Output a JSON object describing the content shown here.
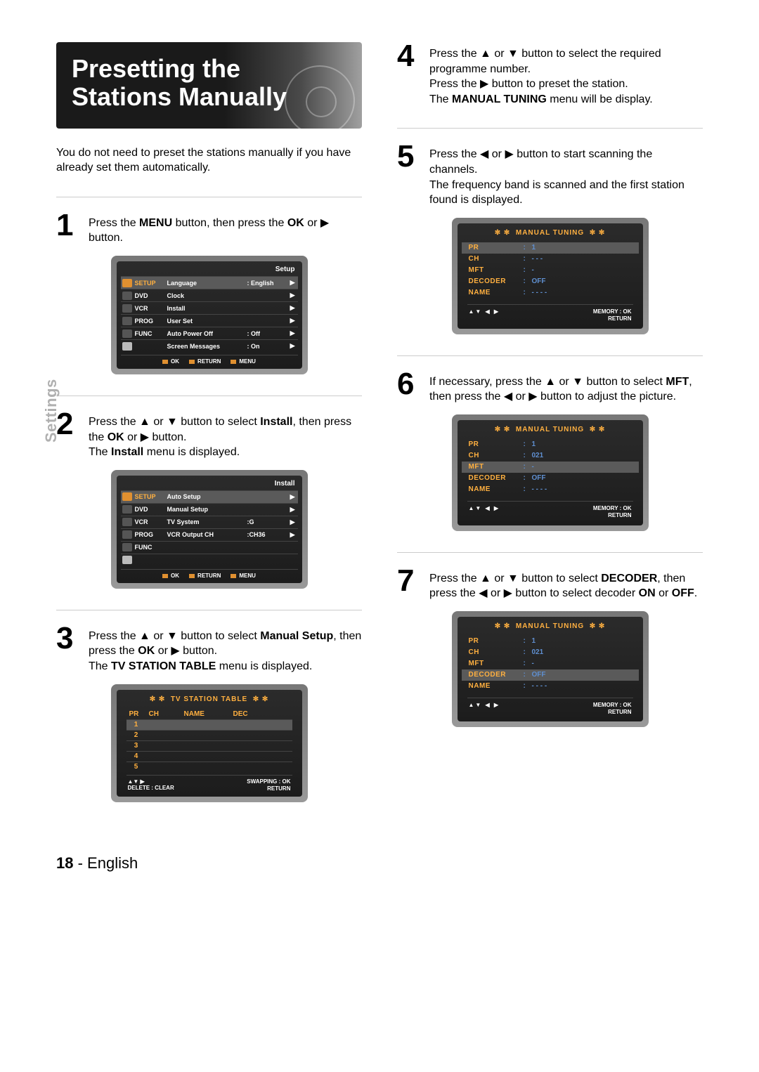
{
  "colors": {
    "accent_orange": "#ffb040",
    "accent_blue": "#5f8fd0",
    "gray_text": "#b0b0b0",
    "divider": "#cccccc",
    "osd_bg": "#1c1c1c"
  },
  "side_tab": "Settings",
  "title": "Presetting the Stations Manually",
  "intro": "You do not need to preset the stations manually if you have already set them automatically.",
  "steps": {
    "1": {
      "num": "1",
      "text_before": "Press the ",
      "b1": "MENU",
      "text_mid": " button, then press the ",
      "b2": "OK",
      "text_after": " or ▶ button."
    },
    "2": {
      "num": "2",
      "line1_a": "Press the ▲ or ▼ button to select ",
      "line1_b": "Install",
      "line1_c": ", then press the ",
      "line1_d": "OK",
      "line1_e": " or ▶ button.",
      "line2_a": "The ",
      "line2_b": "Install",
      "line2_c": " menu is displayed."
    },
    "3": {
      "num": "3",
      "line1_a": "Press the ▲ or ▼ button to select ",
      "line1_b": "Manual Setup",
      "line1_c": ", then press the ",
      "line1_d": "OK",
      "line1_e": " or ▶ button.",
      "line2_a": "The ",
      "line2_b": "TV STATION TABLE",
      "line2_c": " menu is displayed."
    },
    "4": {
      "num": "4",
      "text": "Press the ▲ or ▼ button to select the required programme number.\nPress the ▶ button to preset the station.\nThe ",
      "b": "MANUAL TUNING",
      "after": " menu will be display."
    },
    "5": {
      "num": "5",
      "text": "Press the ◀ or ▶ button to start scanning the channels.\nThe frequency band is scanned and the first station found is displayed."
    },
    "6": {
      "num": "6",
      "a": "If necessary, press the ▲ or ▼ button to select ",
      "b": "MFT",
      "c": ", then press the ◀ or ▶ button to adjust the picture."
    },
    "7": {
      "num": "7",
      "a": "Press the ▲ or ▼ button to select ",
      "b": "DECODER",
      "c": ", then press the ◀ or ▶ button to select decoder ",
      "d": "ON",
      "e": " or ",
      "f": "OFF",
      "g": "."
    }
  },
  "osd_setup": {
    "title": "Setup",
    "left": [
      {
        "label": "SETUP",
        "active": true
      },
      {
        "label": "DVD"
      },
      {
        "label": "VCR"
      },
      {
        "label": "PROG"
      },
      {
        "label": "FUNC"
      },
      {
        "label": ""
      }
    ],
    "rows": [
      {
        "name": "Language",
        "val": ": English",
        "sel": true
      },
      {
        "name": "Clock",
        "val": ""
      },
      {
        "name": "Install",
        "val": ""
      },
      {
        "name": "User Set",
        "val": ""
      },
      {
        "name": "Auto Power Off",
        "val": ": Off"
      },
      {
        "name": "Screen Messages",
        "val": ": On"
      }
    ],
    "footer": [
      "OK",
      "RETURN",
      "MENU"
    ]
  },
  "osd_install": {
    "title": "Install",
    "left": [
      {
        "label": "SETUP",
        "active": true
      },
      {
        "label": "DVD"
      },
      {
        "label": "VCR"
      },
      {
        "label": "PROG"
      },
      {
        "label": "FUNC"
      },
      {
        "label": ""
      }
    ],
    "rows": [
      {
        "name": "Auto Setup",
        "val": "",
        "sel": true
      },
      {
        "name": "Manual Setup",
        "val": ""
      },
      {
        "name": "TV System",
        "val": ":G"
      },
      {
        "name": "VCR Output CH",
        "val": ":CH36"
      }
    ],
    "footer": [
      "OK",
      "RETURN",
      "MENU"
    ]
  },
  "osd_station_table": {
    "title": "TV  STATION  TABLE",
    "cols": [
      "PR",
      "CH",
      "NAME",
      "DEC"
    ],
    "rows": [
      "1",
      "2",
      "3",
      "4",
      "5"
    ],
    "footer_left_arrows": "▲▼  ▶",
    "footer_left": "DELETE : CLEAR",
    "footer_right1": "SWAPPING : OK",
    "footer_right2": "RETURN"
  },
  "osd_tuning_1": {
    "title": "MANUAL TUNING",
    "rows": [
      {
        "label": "PR",
        "val": "1",
        "sel": true
      },
      {
        "label": "CH",
        "val": "- - -"
      },
      {
        "label": "MFT",
        "val": "-"
      },
      {
        "label": "DECODER",
        "val": "OFF"
      },
      {
        "label": "NAME",
        "val": "- - - -"
      }
    ],
    "footer_arrows": "▲▼  ◀ ▶",
    "footer_r1": "MEMORY : OK",
    "footer_r2": "RETURN"
  },
  "osd_tuning_2": {
    "title": "MANUAL TUNING",
    "rows": [
      {
        "label": "PR",
        "val": "1"
      },
      {
        "label": "CH",
        "val": "021"
      },
      {
        "label": "MFT",
        "val": "-",
        "sel": true
      },
      {
        "label": "DECODER",
        "val": "OFF"
      },
      {
        "label": "NAME",
        "val": "- - - -"
      }
    ],
    "footer_arrows": "▲▼  ◀ ▶",
    "footer_r1": "MEMORY : OK",
    "footer_r2": "RETURN"
  },
  "osd_tuning_3": {
    "title": "MANUAL TUNING",
    "rows": [
      {
        "label": "PR",
        "val": "1"
      },
      {
        "label": "CH",
        "val": "021"
      },
      {
        "label": "MFT",
        "val": "-"
      },
      {
        "label": "DECODER",
        "val": "OFF",
        "sel": true
      },
      {
        "label": "NAME",
        "val": "- - - -"
      }
    ],
    "footer_arrows": "▲▼  ◀ ▶",
    "footer_r1": "MEMORY : OK",
    "footer_r2": "RETURN"
  },
  "footer": {
    "page": "18",
    "sep": " - ",
    "lang": "English"
  }
}
